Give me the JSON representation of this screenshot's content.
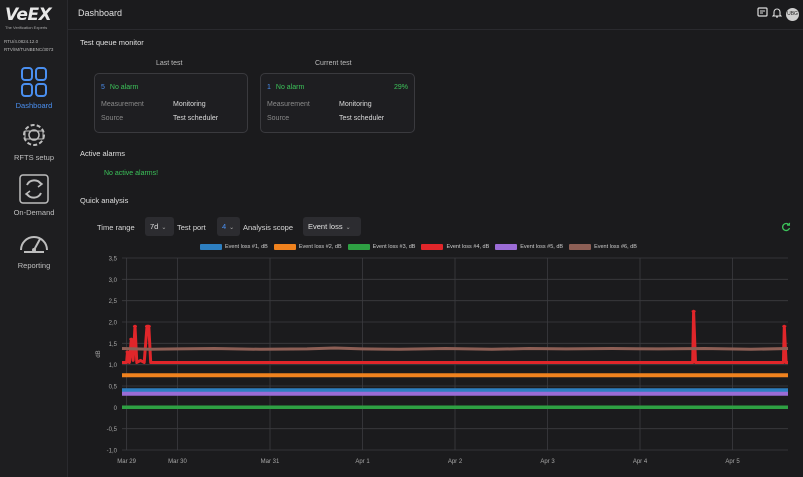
{
  "app": {
    "logo_text": "VeEX",
    "logo_tagline": "The Verification Experts",
    "device_info": [
      "RTU/4.0824.12.0",
      "RTV/IM/TUNBENC/3073"
    ],
    "page_title": "Dashboard",
    "avatar_initials": "UBG"
  },
  "sidebar": {
    "items": [
      {
        "label": "Dashboard",
        "icon": "dashboard-grid-icon",
        "active": true
      },
      {
        "label": "RFTS setup",
        "icon": "gear-icon",
        "active": false
      },
      {
        "label": "On-Demand",
        "icon": "sync-arrows-icon",
        "active": false
      },
      {
        "label": "Reporting",
        "icon": "speedometer-icon",
        "active": false
      }
    ]
  },
  "topbar": {
    "icons": [
      "notes-icon",
      "bell-icon",
      "avatar"
    ]
  },
  "test_queue": {
    "title": "Test queue monitor",
    "last_test": {
      "heading": "Last test",
      "alarm_count": "5",
      "alarm_text": "No alarm",
      "measurement_label": "Measurement",
      "measurement_value": "Monitoring",
      "source_label": "Source",
      "source_value": "Test scheduler"
    },
    "current_test": {
      "heading": "Current test",
      "alarm_count": "1",
      "alarm_text": "No alarm",
      "progress": "29%",
      "measurement_label": "Measurement",
      "measurement_value": "Monitoring",
      "source_label": "Source",
      "source_value": "Test scheduler"
    }
  },
  "active_alarms": {
    "title": "Active alarms",
    "message": "No active alarms!"
  },
  "quick_analysis": {
    "title": "Quick analysis",
    "time_range_label": "Time range",
    "time_range_value": "7d",
    "test_port_label": "Test port",
    "test_port_value": "4",
    "analysis_scope_label": "Analysis scope",
    "analysis_scope_value": "Event loss"
  },
  "colors": {
    "accent_blue": "#4a8ff0",
    "ok_green": "#3cc35a"
  },
  "chart_data": {
    "type": "line",
    "ylabel": "dB",
    "ylim": [
      -1.0,
      3.5
    ],
    "yticks": [
      "3,5",
      "3,0",
      "2,5",
      "2,0",
      "1,5",
      "1,0",
      "0,5",
      "0",
      "-0,5",
      "-1,0"
    ],
    "ytick_values": [
      3.5,
      3.0,
      2.5,
      2.0,
      1.5,
      1.0,
      0.5,
      0,
      -0.5,
      -1.0
    ],
    "x_range": [
      0,
      7.2
    ],
    "xticks": [
      {
        "label": "Mar 29",
        "x": 0.05
      },
      {
        "label": "Mar 30",
        "x": 0.6
      },
      {
        "label": "Mar 31",
        "x": 1.6
      },
      {
        "label": "Apr 1",
        "x": 2.6
      },
      {
        "label": "Apr 2",
        "x": 3.6
      },
      {
        "label": "Apr 3",
        "x": 4.6
      },
      {
        "label": "Apr 4",
        "x": 5.6
      },
      {
        "label": "Apr 5",
        "x": 6.6
      }
    ],
    "grid": true,
    "legend_position": "top",
    "series": [
      {
        "name": "Event loss #1, dB",
        "color": "#2d7fc1",
        "values": [
          [
            0,
            0.4
          ],
          [
            7.2,
            0.4
          ]
        ]
      },
      {
        "name": "Event loss #2, dB",
        "color": "#f0821e",
        "values": [
          [
            0,
            0.75
          ],
          [
            7.2,
            0.75
          ]
        ]
      },
      {
        "name": "Event loss #3, dB",
        "color": "#2ea043",
        "values": [
          [
            0,
            0.0
          ],
          [
            7.2,
            0.0
          ]
        ]
      },
      {
        "name": "Event loss #4, dB",
        "color": "#e0262a",
        "values": [
          [
            0,
            1.05
          ],
          [
            0.05,
            1.05
          ],
          [
            0.06,
            1.3
          ],
          [
            0.08,
            1.05
          ],
          [
            0.1,
            1.6
          ],
          [
            0.12,
            1.1
          ],
          [
            0.14,
            1.9
          ],
          [
            0.16,
            1.05
          ],
          [
            0.2,
            1.1
          ],
          [
            0.24,
            1.05
          ],
          [
            0.27,
            1.9
          ],
          [
            0.29,
            1.9
          ],
          [
            0.31,
            1.05
          ],
          [
            6.17,
            1.05
          ],
          [
            6.18,
            2.25
          ],
          [
            6.2,
            1.05
          ],
          [
            7.15,
            1.05
          ],
          [
            7.16,
            1.9
          ],
          [
            7.18,
            1.05
          ],
          [
            7.2,
            1.05
          ]
        ]
      },
      {
        "name": "Event loss #5, dB",
        "color": "#9b6cd6",
        "values": [
          [
            0,
            0.32
          ],
          [
            7.2,
            0.32
          ]
        ]
      },
      {
        "name": "Event loss #6, dB",
        "color": "#8d5f55",
        "values": [
          [
            0,
            1.38
          ],
          [
            0.3,
            1.36
          ],
          [
            0.6,
            1.37
          ],
          [
            1.0,
            1.38
          ],
          [
            1.5,
            1.36
          ],
          [
            2.0,
            1.37
          ],
          [
            2.3,
            1.39
          ],
          [
            2.6,
            1.37
          ],
          [
            3.0,
            1.36
          ],
          [
            3.5,
            1.38
          ],
          [
            4.0,
            1.36
          ],
          [
            4.4,
            1.38
          ],
          [
            4.8,
            1.37
          ],
          [
            5.3,
            1.38
          ],
          [
            5.8,
            1.37
          ],
          [
            6.3,
            1.38
          ],
          [
            6.8,
            1.36
          ],
          [
            7.2,
            1.38
          ]
        ]
      }
    ]
  }
}
